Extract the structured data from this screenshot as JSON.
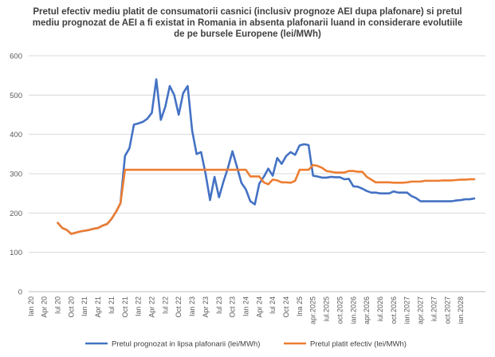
{
  "chart_data": {
    "type": "line",
    "title": "Pretul efectiv mediu platit de consumatorii casnici (inclusiv prognoze AEI dupa plafonare) si pretul mediu prognozat de AEI a fi existat in Romania in absenta plafonarii luand in considerare evolutiile de pe bursele Europene (lei/MWh)",
    "xlabel": "",
    "ylabel": "",
    "ylim": [
      0,
      600
    ],
    "yticks": [
      0,
      100,
      200,
      300,
      400,
      500,
      600
    ],
    "grid": true,
    "legend_position": "bottom",
    "x_tick_labels": [
      "Ian 20",
      "Apr 20",
      "Iul 20",
      "Oct 20",
      "Ian 21",
      "Apr 21",
      "Iul 21",
      "Oct 21",
      "Ian 22",
      "Apr 22",
      "Iul 22",
      "Oct 22",
      "Ian 23",
      "Apr 23",
      "Iul 23",
      "Oct 23",
      "Ian 24",
      "Apr 24",
      "Iul 24",
      "Oct 24",
      "Ina 25",
      "apr.2025",
      "iul.2025",
      "oct.2025",
      "ian.2026",
      "apr.2026",
      "iul.2026",
      "oct.2026",
      "ian.2027",
      "apr.2027",
      "iul.2027",
      "oct.2027",
      "ian.2028"
    ],
    "series": [
      {
        "name": "Pretul prognozat in lipsa plafonarii (lei/MWh)",
        "color": "#4472C4",
        "points": [
          [
            6,
            175
          ],
          [
            7,
            162
          ],
          [
            8,
            157
          ],
          [
            9,
            147
          ],
          [
            10,
            150
          ],
          [
            11,
            153
          ],
          [
            12,
            155
          ],
          [
            13,
            157
          ],
          [
            14,
            160
          ],
          [
            15,
            162
          ],
          [
            16,
            168
          ],
          [
            17,
            172
          ],
          [
            18,
            185
          ],
          [
            19,
            203
          ],
          [
            20,
            225
          ],
          [
            21,
            345
          ],
          [
            22,
            365
          ],
          [
            23,
            425
          ],
          [
            24,
            428
          ],
          [
            25,
            432
          ],
          [
            26,
            440
          ],
          [
            27,
            455
          ],
          [
            28,
            540
          ],
          [
            29,
            437
          ],
          [
            30,
            470
          ],
          [
            31,
            523
          ],
          [
            32,
            500
          ],
          [
            33,
            450
          ],
          [
            34,
            505
          ],
          [
            35,
            523
          ],
          [
            36,
            410
          ],
          [
            37,
            350
          ],
          [
            38,
            355
          ],
          [
            39,
            300
          ],
          [
            40,
            233
          ],
          [
            41,
            292
          ],
          [
            42,
            240
          ],
          [
            43,
            280
          ],
          [
            44,
            315
          ],
          [
            45,
            357
          ],
          [
            46,
            318
          ],
          [
            47,
            277
          ],
          [
            48,
            260
          ],
          [
            49,
            230
          ],
          [
            50,
            222
          ],
          [
            51,
            275
          ],
          [
            52,
            292
          ],
          [
            53,
            313
          ],
          [
            54,
            295
          ],
          [
            55,
            340
          ],
          [
            56,
            325
          ],
          [
            57,
            345
          ],
          [
            58,
            355
          ],
          [
            59,
            348
          ],
          [
            60,
            372
          ],
          [
            61,
            375
          ],
          [
            62,
            373
          ],
          [
            63,
            295
          ],
          [
            64,
            293
          ],
          [
            65,
            290
          ],
          [
            66,
            290
          ],
          [
            67,
            292
          ],
          [
            68,
            291
          ],
          [
            69,
            291
          ],
          [
            70,
            286
          ],
          [
            71,
            287
          ],
          [
            72,
            268
          ],
          [
            73,
            267
          ],
          [
            74,
            262
          ],
          [
            75,
            256
          ],
          [
            76,
            252
          ],
          [
            77,
            252
          ],
          [
            78,
            250
          ],
          [
            79,
            250
          ],
          [
            80,
            250
          ],
          [
            81,
            255
          ],
          [
            82,
            252
          ],
          [
            83,
            252
          ],
          [
            84,
            252
          ],
          [
            85,
            243
          ],
          [
            86,
            238
          ],
          [
            87,
            230
          ],
          [
            88,
            230
          ],
          [
            89,
            230
          ],
          [
            90,
            230
          ],
          [
            91,
            230
          ],
          [
            92,
            230
          ],
          [
            93,
            230
          ],
          [
            94,
            230
          ],
          [
            95,
            232
          ],
          [
            96,
            233
          ],
          [
            97,
            235
          ],
          [
            98,
            235
          ],
          [
            99,
            237
          ]
        ]
      },
      {
        "name": "Pretul platit efectiv (lei/MWh)",
        "color": "#ED7D31",
        "points": [
          [
            6,
            175
          ],
          [
            7,
            162
          ],
          [
            8,
            157
          ],
          [
            9,
            147
          ],
          [
            10,
            150
          ],
          [
            11,
            153
          ],
          [
            12,
            155
          ],
          [
            13,
            157
          ],
          [
            14,
            160
          ],
          [
            15,
            162
          ],
          [
            16,
            168
          ],
          [
            17,
            172
          ],
          [
            18,
            185
          ],
          [
            19,
            203
          ],
          [
            20,
            225
          ],
          [
            21,
            310
          ],
          [
            22,
            310
          ],
          [
            23,
            310
          ],
          [
            24,
            310
          ],
          [
            25,
            310
          ],
          [
            26,
            310
          ],
          [
            27,
            310
          ],
          [
            28,
            310
          ],
          [
            29,
            310
          ],
          [
            30,
            310
          ],
          [
            31,
            310
          ],
          [
            32,
            310
          ],
          [
            33,
            310
          ],
          [
            34,
            310
          ],
          [
            35,
            310
          ],
          [
            36,
            310
          ],
          [
            37,
            310
          ],
          [
            38,
            310
          ],
          [
            39,
            310
          ],
          [
            40,
            310
          ],
          [
            41,
            310
          ],
          [
            42,
            310
          ],
          [
            43,
            310
          ],
          [
            44,
            310
          ],
          [
            45,
            310
          ],
          [
            46,
            310
          ],
          [
            47,
            310
          ],
          [
            48,
            310
          ],
          [
            49,
            293
          ],
          [
            50,
            293
          ],
          [
            51,
            293
          ],
          [
            52,
            278
          ],
          [
            53,
            273
          ],
          [
            54,
            285
          ],
          [
            55,
            283
          ],
          [
            56,
            278
          ],
          [
            57,
            278
          ],
          [
            58,
            277
          ],
          [
            59,
            282
          ],
          [
            60,
            310
          ],
          [
            61,
            310
          ],
          [
            62,
            310
          ],
          [
            63,
            322
          ],
          [
            64,
            320
          ],
          [
            65,
            315
          ],
          [
            66,
            307
          ],
          [
            67,
            305
          ],
          [
            68,
            303
          ],
          [
            69,
            303
          ],
          [
            70,
            303
          ],
          [
            71,
            307
          ],
          [
            72,
            307
          ],
          [
            73,
            305
          ],
          [
            74,
            305
          ],
          [
            75,
            292
          ],
          [
            76,
            285
          ],
          [
            77,
            278
          ],
          [
            78,
            278
          ],
          [
            79,
            278
          ],
          [
            80,
            278
          ],
          [
            81,
            277
          ],
          [
            82,
            277
          ],
          [
            83,
            277
          ],
          [
            84,
            278
          ],
          [
            85,
            280
          ],
          [
            86,
            280
          ],
          [
            87,
            280
          ],
          [
            88,
            282
          ],
          [
            89,
            282
          ],
          [
            90,
            282
          ],
          [
            91,
            282
          ],
          [
            92,
            283
          ],
          [
            93,
            283
          ],
          [
            94,
            283
          ],
          [
            95,
            284
          ],
          [
            96,
            285
          ],
          [
            97,
            285
          ],
          [
            98,
            286
          ],
          [
            99,
            286
          ]
        ]
      }
    ]
  }
}
